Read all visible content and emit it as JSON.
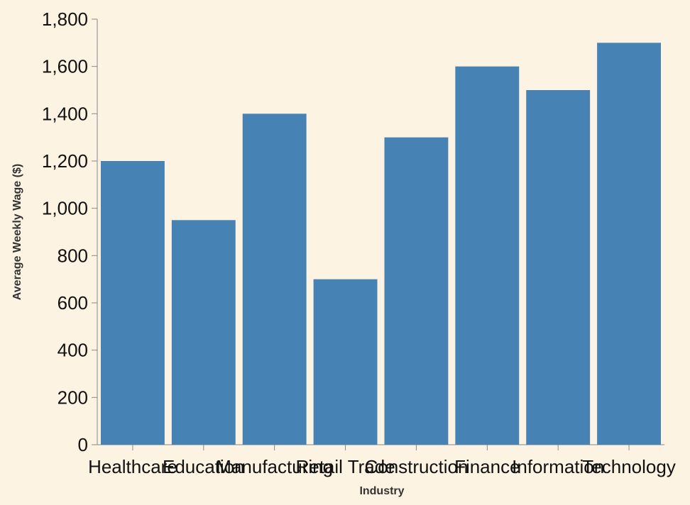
{
  "chart_data": {
    "type": "bar",
    "categories": [
      "Healthcare",
      "Education",
      "Manufacturing",
      "Retail Trade",
      "Construction",
      "Finance",
      "Information",
      "Technology"
    ],
    "values": [
      1200,
      950,
      1400,
      700,
      1300,
      1600,
      1500,
      1700
    ],
    "xlabel": "Industry",
    "ylabel": "Average Weekly Wage ($)",
    "ylim": [
      0,
      1800
    ],
    "yticks": [
      "0",
      "200",
      "400",
      "600",
      "800",
      "1,000",
      "1,200",
      "1,400",
      "1,600",
      "1,800"
    ],
    "grid": false,
    "colors": {
      "bar": "#4682b4",
      "background": "#fdf3e3",
      "axis": "#888888"
    }
  }
}
